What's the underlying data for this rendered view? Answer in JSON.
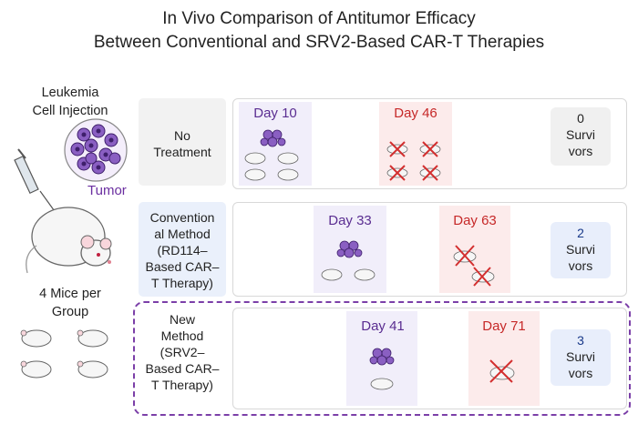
{
  "title": {
    "line1": "In Vivo Comparison of Antitumor Efficacy",
    "line2": "Between Conventional and SRV2-Based CAR-T Therapies"
  },
  "left": {
    "injection_label_1": "Leukemia",
    "injection_label_2": "Cell Injection",
    "tumor_label": "Tumor",
    "mice_label_1": "4 Mice per",
    "mice_label_2": "Group"
  },
  "rows": [
    {
      "label_lines": [
        "No",
        "Treatment"
      ],
      "first_day": "Day 10",
      "second_day": "Day 46",
      "survivors_count": "0",
      "survivors_lines": [
        "Survi",
        "vors"
      ]
    },
    {
      "label_lines": [
        "Convention",
        "al Method",
        "(RD114–",
        "Based CAR–",
        "T Therapy)"
      ],
      "first_day": "Day 33",
      "second_day": "Day 63",
      "survivors_count": "2",
      "survivors_lines": [
        "Survi",
        "vors"
      ]
    },
    {
      "label_lines": [
        "New",
        "Method",
        "(SRV2–",
        "Based CAR–",
        "T Therapy)"
      ],
      "first_day": "Day 41",
      "second_day": "Day 71",
      "survivors_count": "3",
      "survivors_lines": [
        "Survi",
        "vors"
      ]
    }
  ],
  "colors": {
    "purple_text": "#5a2d91",
    "red_text": "#c62828",
    "dashed_border": "#7b3fa8"
  }
}
